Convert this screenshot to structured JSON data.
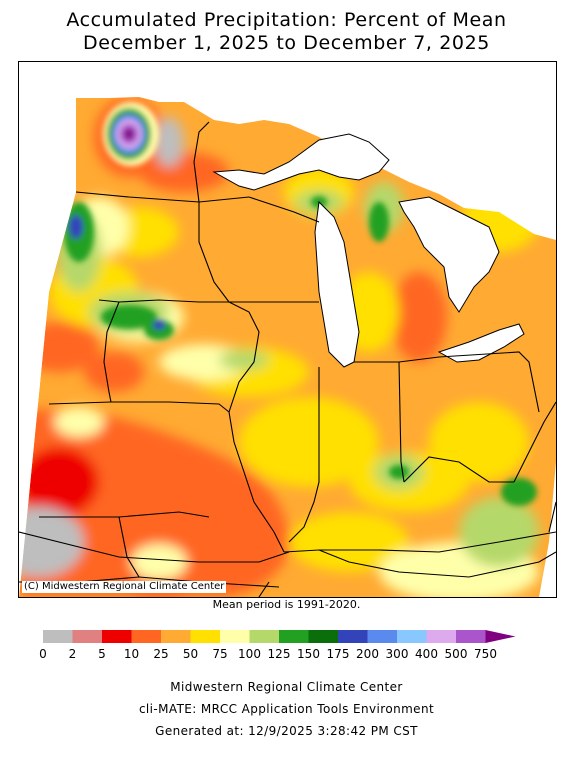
{
  "title": {
    "line1": "Accumulated Precipitation: Percent of Mean",
    "line2": "December 1, 2025 to December 7, 2025"
  },
  "map": {
    "credit": "(C) Midwestern Regional Climate Center",
    "mean_period": "Mean period is 1991-2020."
  },
  "legend": {
    "labels": [
      "0",
      "2",
      "5",
      "10",
      "25",
      "50",
      "75",
      "100",
      "125",
      "150",
      "175",
      "200",
      "300",
      "400",
      "500",
      "750"
    ],
    "colors": [
      "#bebebe",
      "#e08080",
      "#ee0000",
      "#ff6622",
      "#ffaa33",
      "#ffe000",
      "#ffffaa",
      "#b5d86a",
      "#22a022",
      "#0a6e0a",
      "#3344bb",
      "#5a8aee",
      "#88c8ff",
      "#ddaaee",
      "#aa55cc",
      "#800080"
    ]
  },
  "footer": {
    "line1": "Midwestern Regional Climate Center",
    "line2": "cli-MATE: MRCC Application Tools Environment",
    "line3": "Generated at: 12/9/2025 3:28:42 PM CST"
  }
}
